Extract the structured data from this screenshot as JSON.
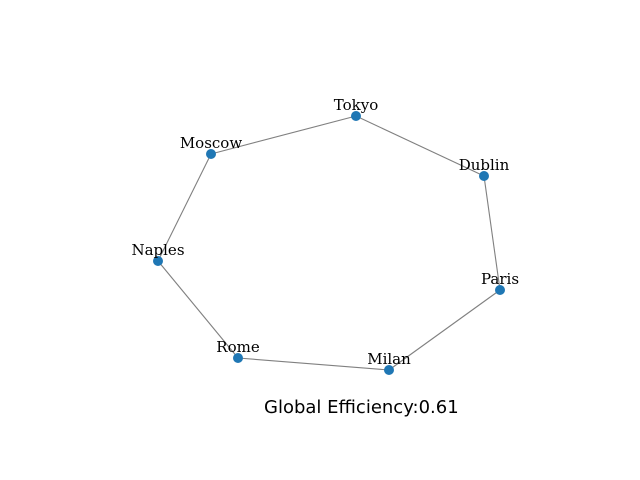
{
  "graph": {
    "nodes": [
      {
        "id": "Tokyo"
      },
      {
        "id": "Dublin"
      },
      {
        "id": "Paris"
      },
      {
        "id": "Milan"
      },
      {
        "id": "Rome"
      },
      {
        "id": "Naples"
      },
      {
        "id": "Moscow"
      }
    ],
    "edges": [
      [
        "Tokyo",
        "Dublin"
      ],
      [
        "Dublin",
        "Paris"
      ],
      [
        "Paris",
        "Milan"
      ],
      [
        "Milan",
        "Rome"
      ],
      [
        "Rome",
        "Naples"
      ],
      [
        "Naples",
        "Moscow"
      ],
      [
        "Moscow",
        "Tokyo"
      ]
    ]
  },
  "metric": {
    "label": "Global Efficiency:",
    "value": "0.61"
  },
  "colors": {
    "node": "#1f77b4",
    "edge": "#808080"
  }
}
